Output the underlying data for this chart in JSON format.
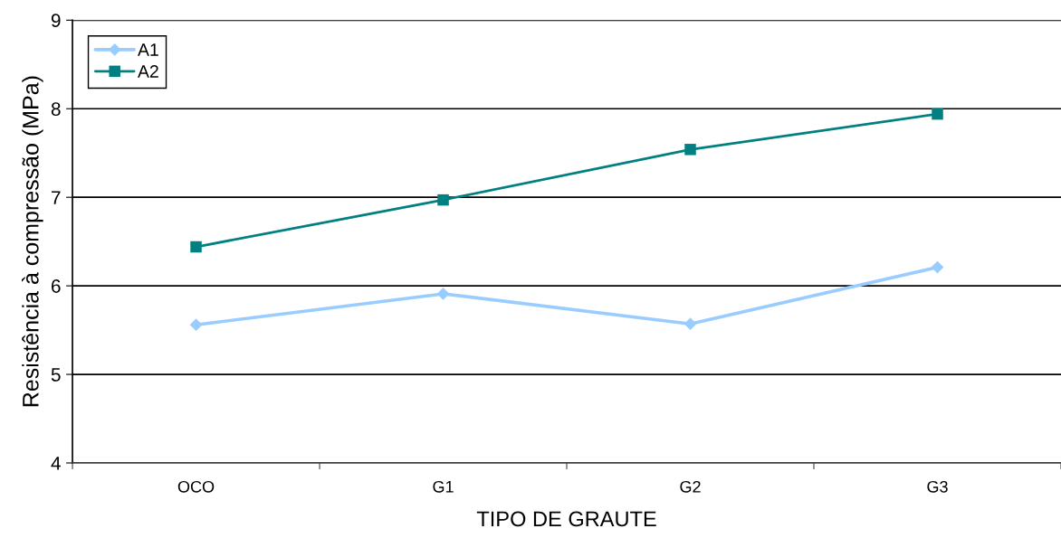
{
  "chart_data": {
    "type": "line",
    "xlabel": "TIPO DE GRAUTE",
    "ylabel": "Resistência à compressão (MPa)",
    "categories": [
      "OCO",
      "G1",
      "G2",
      "G3"
    ],
    "series": [
      {
        "name": "A1",
        "color": "#99ccff",
        "marker": "diamond",
        "values": [
          5.56,
          5.91,
          5.57,
          6.21
        ]
      },
      {
        "name": "A2",
        "color": "#008080",
        "marker": "square",
        "values": [
          6.44,
          6.97,
          7.54,
          7.94
        ]
      }
    ],
    "ylim": [
      4,
      9
    ],
    "yticks": [
      4,
      5,
      6,
      7,
      8,
      9
    ],
    "grid": "y",
    "legend": "top left",
    "line_style": "solid"
  }
}
